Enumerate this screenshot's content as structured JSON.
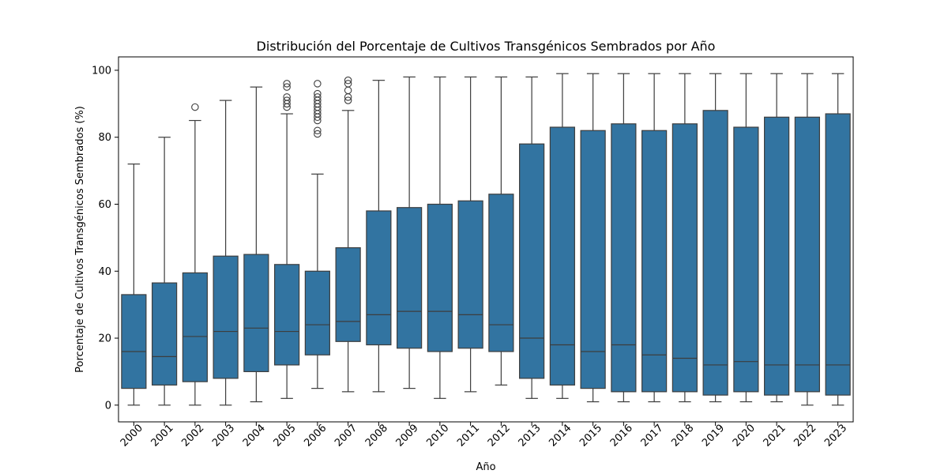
{
  "chart_data": {
    "type": "box",
    "title": "Distribución del Porcentaje de Cultivos Transgénicos Sembrados por Año",
    "xlabel": "Año",
    "ylabel": "Porcentaje de Cultivos Transgénicos Sembrados (%)",
    "ylim": [
      -5,
      104
    ],
    "yticks": [
      0,
      20,
      40,
      60,
      80,
      100
    ],
    "grid": false,
    "box_color": "#3274a1",
    "line_color": "#3d3d3d",
    "categories": [
      "2000",
      "2001",
      "2002",
      "2003",
      "2004",
      "2005",
      "2006",
      "2007",
      "2008",
      "2009",
      "2010",
      "2011",
      "2012",
      "2013",
      "2014",
      "2015",
      "2016",
      "2017",
      "2018",
      "2019",
      "2020",
      "2021",
      "2022",
      "2023"
    ],
    "boxes": [
      {
        "min": 0,
        "q1": 5,
        "median": 16,
        "q3": 33,
        "max": 72,
        "outliers": []
      },
      {
        "min": 0,
        "q1": 6,
        "median": 14.5,
        "q3": 36.5,
        "max": 80,
        "outliers": []
      },
      {
        "min": 0,
        "q1": 7,
        "median": 20.5,
        "q3": 39.5,
        "max": 85,
        "outliers": [
          89
        ]
      },
      {
        "min": 0,
        "q1": 8,
        "median": 22,
        "q3": 44.5,
        "max": 91,
        "outliers": []
      },
      {
        "min": 1,
        "q1": 10,
        "median": 23,
        "q3": 45,
        "max": 95,
        "outliers": []
      },
      {
        "min": 2,
        "q1": 12,
        "median": 22,
        "q3": 42,
        "max": 87,
        "outliers": [
          89,
          90,
          91,
          92,
          95,
          96
        ]
      },
      {
        "min": 5,
        "q1": 15,
        "median": 24,
        "q3": 40,
        "max": 69,
        "outliers": [
          81,
          82,
          85,
          86,
          87,
          88,
          89,
          90,
          91,
          92,
          93,
          96
        ]
      },
      {
        "min": 4,
        "q1": 19,
        "median": 25,
        "q3": 47,
        "max": 88,
        "outliers": [
          91,
          92,
          94,
          96,
          97
        ]
      },
      {
        "min": 4,
        "q1": 18,
        "median": 27,
        "q3": 58,
        "max": 97,
        "outliers": []
      },
      {
        "min": 5,
        "q1": 17,
        "median": 28,
        "q3": 59,
        "max": 98,
        "outliers": []
      },
      {
        "min": 2,
        "q1": 16,
        "median": 28,
        "q3": 60,
        "max": 98,
        "outliers": []
      },
      {
        "min": 4,
        "q1": 17,
        "median": 27,
        "q3": 61,
        "max": 98,
        "outliers": []
      },
      {
        "min": 6,
        "q1": 16,
        "median": 24,
        "q3": 63,
        "max": 98,
        "outliers": []
      },
      {
        "min": 2,
        "q1": 8,
        "median": 20,
        "q3": 78,
        "max": 98,
        "outliers": []
      },
      {
        "min": 2,
        "q1": 6,
        "median": 18,
        "q3": 83,
        "max": 99,
        "outliers": []
      },
      {
        "min": 1,
        "q1": 5,
        "median": 16,
        "q3": 82,
        "max": 99,
        "outliers": []
      },
      {
        "min": 1,
        "q1": 4,
        "median": 18,
        "q3": 84,
        "max": 99,
        "outliers": []
      },
      {
        "min": 1,
        "q1": 4,
        "median": 15,
        "q3": 82,
        "max": 99,
        "outliers": []
      },
      {
        "min": 1,
        "q1": 4,
        "median": 14,
        "q3": 84,
        "max": 99,
        "outliers": []
      },
      {
        "min": 1,
        "q1": 3,
        "median": 12,
        "q3": 88,
        "max": 99,
        "outliers": []
      },
      {
        "min": 1,
        "q1": 4,
        "median": 13,
        "q3": 83,
        "max": 99,
        "outliers": []
      },
      {
        "min": 1,
        "q1": 3,
        "median": 12,
        "q3": 86,
        "max": 99,
        "outliers": []
      },
      {
        "min": 0,
        "q1": 4,
        "median": 12,
        "q3": 86,
        "max": 99,
        "outliers": []
      },
      {
        "min": 0,
        "q1": 3,
        "median": 12,
        "q3": 87,
        "max": 99,
        "outliers": []
      }
    ]
  }
}
